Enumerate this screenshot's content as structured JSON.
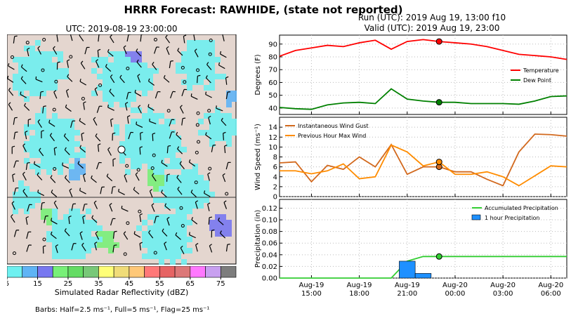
{
  "header": {
    "title": "HRRR Forecast: RAWHIDE, (state not reported)",
    "run": "Run (UTC): 2019 Aug 19, 13:00 f10",
    "valid": "Valid (UTC): 2019 Aug 19, 23:00"
  },
  "map": {
    "title": "UTC: 2019-08-19 23:00:00",
    "colorbar_label": "Simulated Radar Reflectivity (dBZ)",
    "colorbar_ticks": [
      "5",
      "15",
      "25",
      "35",
      "45",
      "55",
      "65",
      "75"
    ],
    "colorbar_colors": [
      "#6ef0f0",
      "#5fb4f5",
      "#7878f0",
      "#78f078",
      "#64dc64",
      "#78c878",
      "#ffff78",
      "#f0dc78",
      "#ffc878",
      "#ff7878",
      "#e66464",
      "#dc7878",
      "#ff78ff",
      "#c8a0f0",
      "#7d7d7d"
    ],
    "barbs_note": "Barbs: Half=2.5 ms⁻¹, Full=5 ms⁻¹, Flag=25 ms⁻¹"
  },
  "chart_data": [
    {
      "type": "line",
      "ylabel": "Degrees (F)",
      "ylim": [
        35,
        97
      ],
      "yticks": [
        "40",
        "50",
        "60",
        "70",
        "80",
        "90"
      ],
      "x_hours": [
        13,
        14,
        15,
        16,
        17,
        18,
        19,
        20,
        21,
        22,
        23,
        24,
        25,
        26,
        27,
        28,
        29,
        30,
        31
      ],
      "series": [
        {
          "name": "Temperature",
          "color": "#ff0000",
          "values": [
            80.5,
            85,
            87,
            89,
            88,
            91,
            93,
            86,
            92,
            93.5,
            92,
            91,
            90,
            88,
            85,
            82,
            81,
            80,
            78
          ]
        },
        {
          "name": "Dew Point",
          "color": "#008000",
          "values": [
            40.5,
            39.5,
            39,
            42.5,
            44,
            44.5,
            43.5,
            55,
            47,
            45.5,
            44.5,
            44.5,
            43.5,
            43.5,
            43.5,
            43,
            45.5,
            49,
            49.5
          ]
        }
      ],
      "marker_hour": 23,
      "legend": "right"
    },
    {
      "type": "line",
      "ylabel": "Wind Speed (ms⁻¹)",
      "ylim": [
        0,
        16
      ],
      "yticks": [
        "0",
        "2",
        "4",
        "6",
        "8",
        "10",
        "12",
        "14"
      ],
      "x_hours": [
        13,
        14,
        15,
        16,
        17,
        18,
        19,
        20,
        21,
        22,
        23,
        24,
        25,
        26,
        27,
        28,
        29,
        30,
        31
      ],
      "series": [
        {
          "name": "Instantaneous Wind Gust",
          "color": "#d2691e",
          "values": [
            6.8,
            7,
            3,
            6.3,
            5.5,
            8,
            6,
            10.5,
            4.5,
            6,
            6,
            5,
            5,
            3.5,
            2.2,
            9,
            12.6,
            12.5,
            12.2
          ]
        },
        {
          "name": "Previous Hour Max Wind",
          "color": "#ff8c00",
          "values": [
            5.2,
            5.2,
            4.6,
            5.2,
            6.6,
            3.6,
            4,
            10.4,
            9,
            6.2,
            7,
            4.5,
            4.5,
            5,
            4,
            2.2,
            4.2,
            6.2,
            6
          ]
        }
      ],
      "marker_hour": 23,
      "legend": "top-left"
    },
    {
      "type": "bar+line",
      "ylabel": "Precipitation (in)",
      "ylim": [
        0,
        0.135
      ],
      "yticks": [
        "0.00",
        "0.02",
        "0.04",
        "0.06",
        "0.08",
        "0.10",
        "0.12"
      ],
      "x_hours": [
        13,
        14,
        15,
        16,
        17,
        18,
        19,
        20,
        21,
        22,
        23,
        24,
        25,
        26,
        27,
        28,
        29,
        30,
        31
      ],
      "series": [
        {
          "name": "Accumulated Precipitation",
          "color": "#32cd32",
          "values": [
            0,
            0,
            0,
            0,
            0,
            0,
            0,
            0,
            0.029,
            0.037,
            0.037,
            0.037,
            0.037,
            0.037,
            0.037,
            0.037,
            0.037,
            0.037,
            0.037
          ]
        },
        {
          "name": "1 hour Precipitation",
          "color": "#1e90ff",
          "values": [
            0,
            0,
            0,
            0,
            0,
            0,
            0,
            0,
            0.029,
            0.008,
            0,
            0,
            0,
            0,
            0,
            0,
            0,
            0,
            0
          ]
        }
      ],
      "marker_hour": 23,
      "legend": "top-right"
    }
  ],
  "x_axis": {
    "ticks": [
      {
        "hour": 15,
        "line1": "Aug-19",
        "line2": "15:00"
      },
      {
        "hour": 18,
        "line1": "Aug-19",
        "line2": "18:00"
      },
      {
        "hour": 21,
        "line1": "Aug-19",
        "line2": "21:00"
      },
      {
        "hour": 24,
        "line1": "Aug-20",
        "line2": "00:00"
      },
      {
        "hour": 27,
        "line1": "Aug-20",
        "line2": "03:00"
      },
      {
        "hour": 30,
        "line1": "Aug-20",
        "line2": "06:00"
      }
    ],
    "range_hours": [
      13,
      31
    ]
  }
}
